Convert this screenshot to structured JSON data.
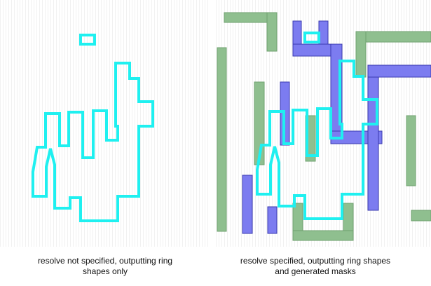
{
  "panels": [
    {
      "caption_lines": [
        "resolve not specified, outputting ring",
        "shapes only"
      ]
    },
    {
      "caption_lines": [
        "resolve specified, outputting ring shapes",
        "and generated masks"
      ]
    }
  ]
}
